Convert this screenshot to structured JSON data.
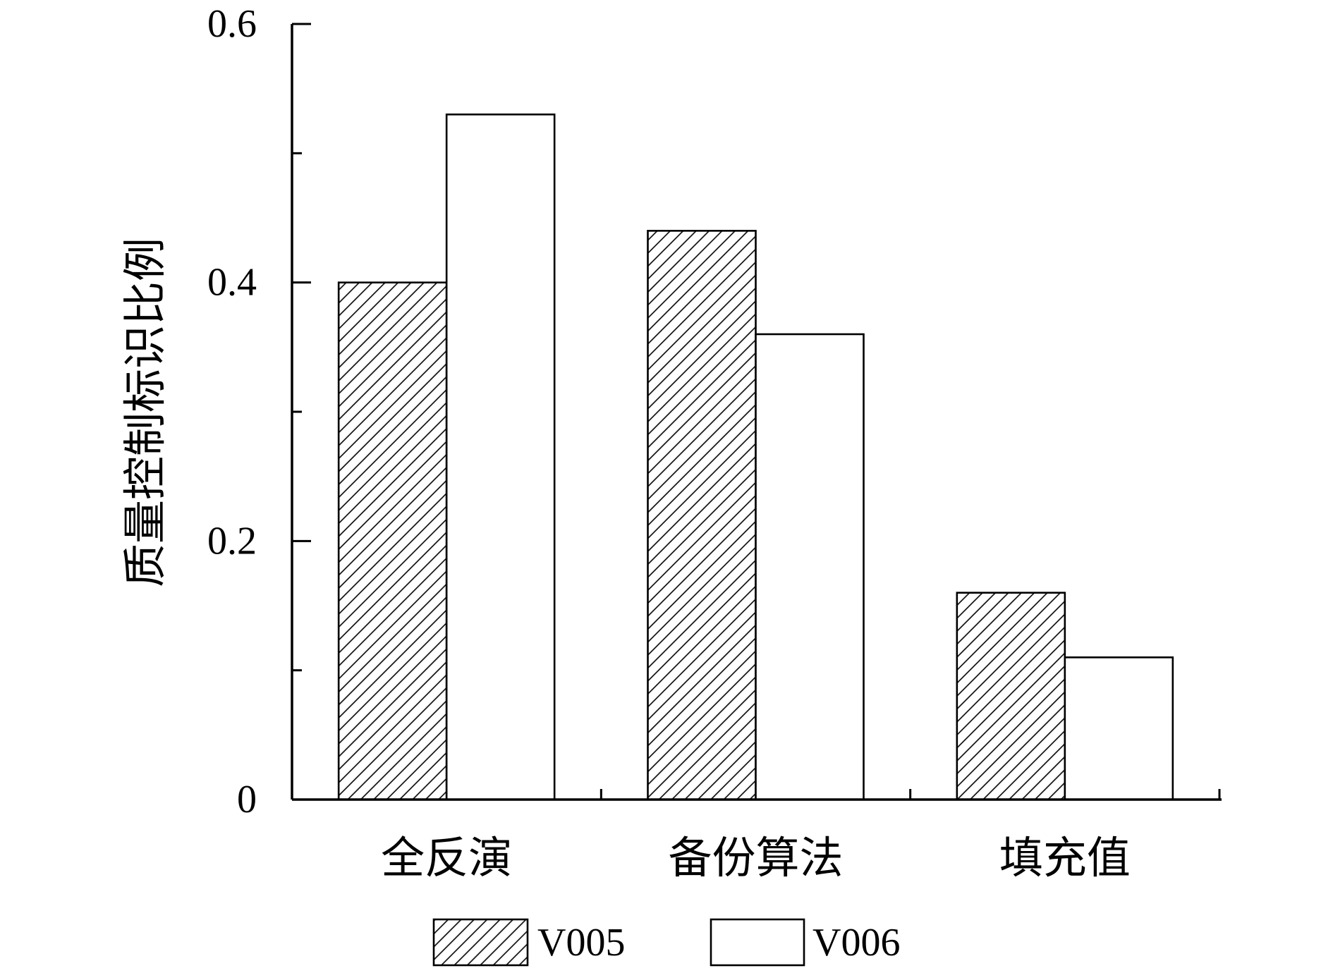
{
  "chart_data": {
    "type": "bar",
    "categories": [
      "全反演",
      "备份算法",
      "填充值"
    ],
    "series": [
      {
        "name": "V005",
        "values": [
          0.4,
          0.44,
          0.16
        ],
        "fill": "hatch",
        "stroke": "#000000"
      },
      {
        "name": "V006",
        "values": [
          0.53,
          0.36,
          0.11
        ],
        "fill": "#ffffff",
        "stroke": "#000000"
      }
    ],
    "xlabel": "",
    "ylabel": "质量控制标识比例",
    "ylim": [
      0,
      0.6
    ],
    "yticks": [
      0,
      0.2,
      0.4,
      0.6
    ],
    "ytick_labels": [
      "0",
      "0.2",
      "0.4",
      "0.6"
    ],
    "yminor_ticks": [
      0.1,
      0.3,
      0.5
    ],
    "grid": false,
    "legend": "bottom-center",
    "colors": {
      "axis": "#000000",
      "background": "#ffffff"
    }
  }
}
